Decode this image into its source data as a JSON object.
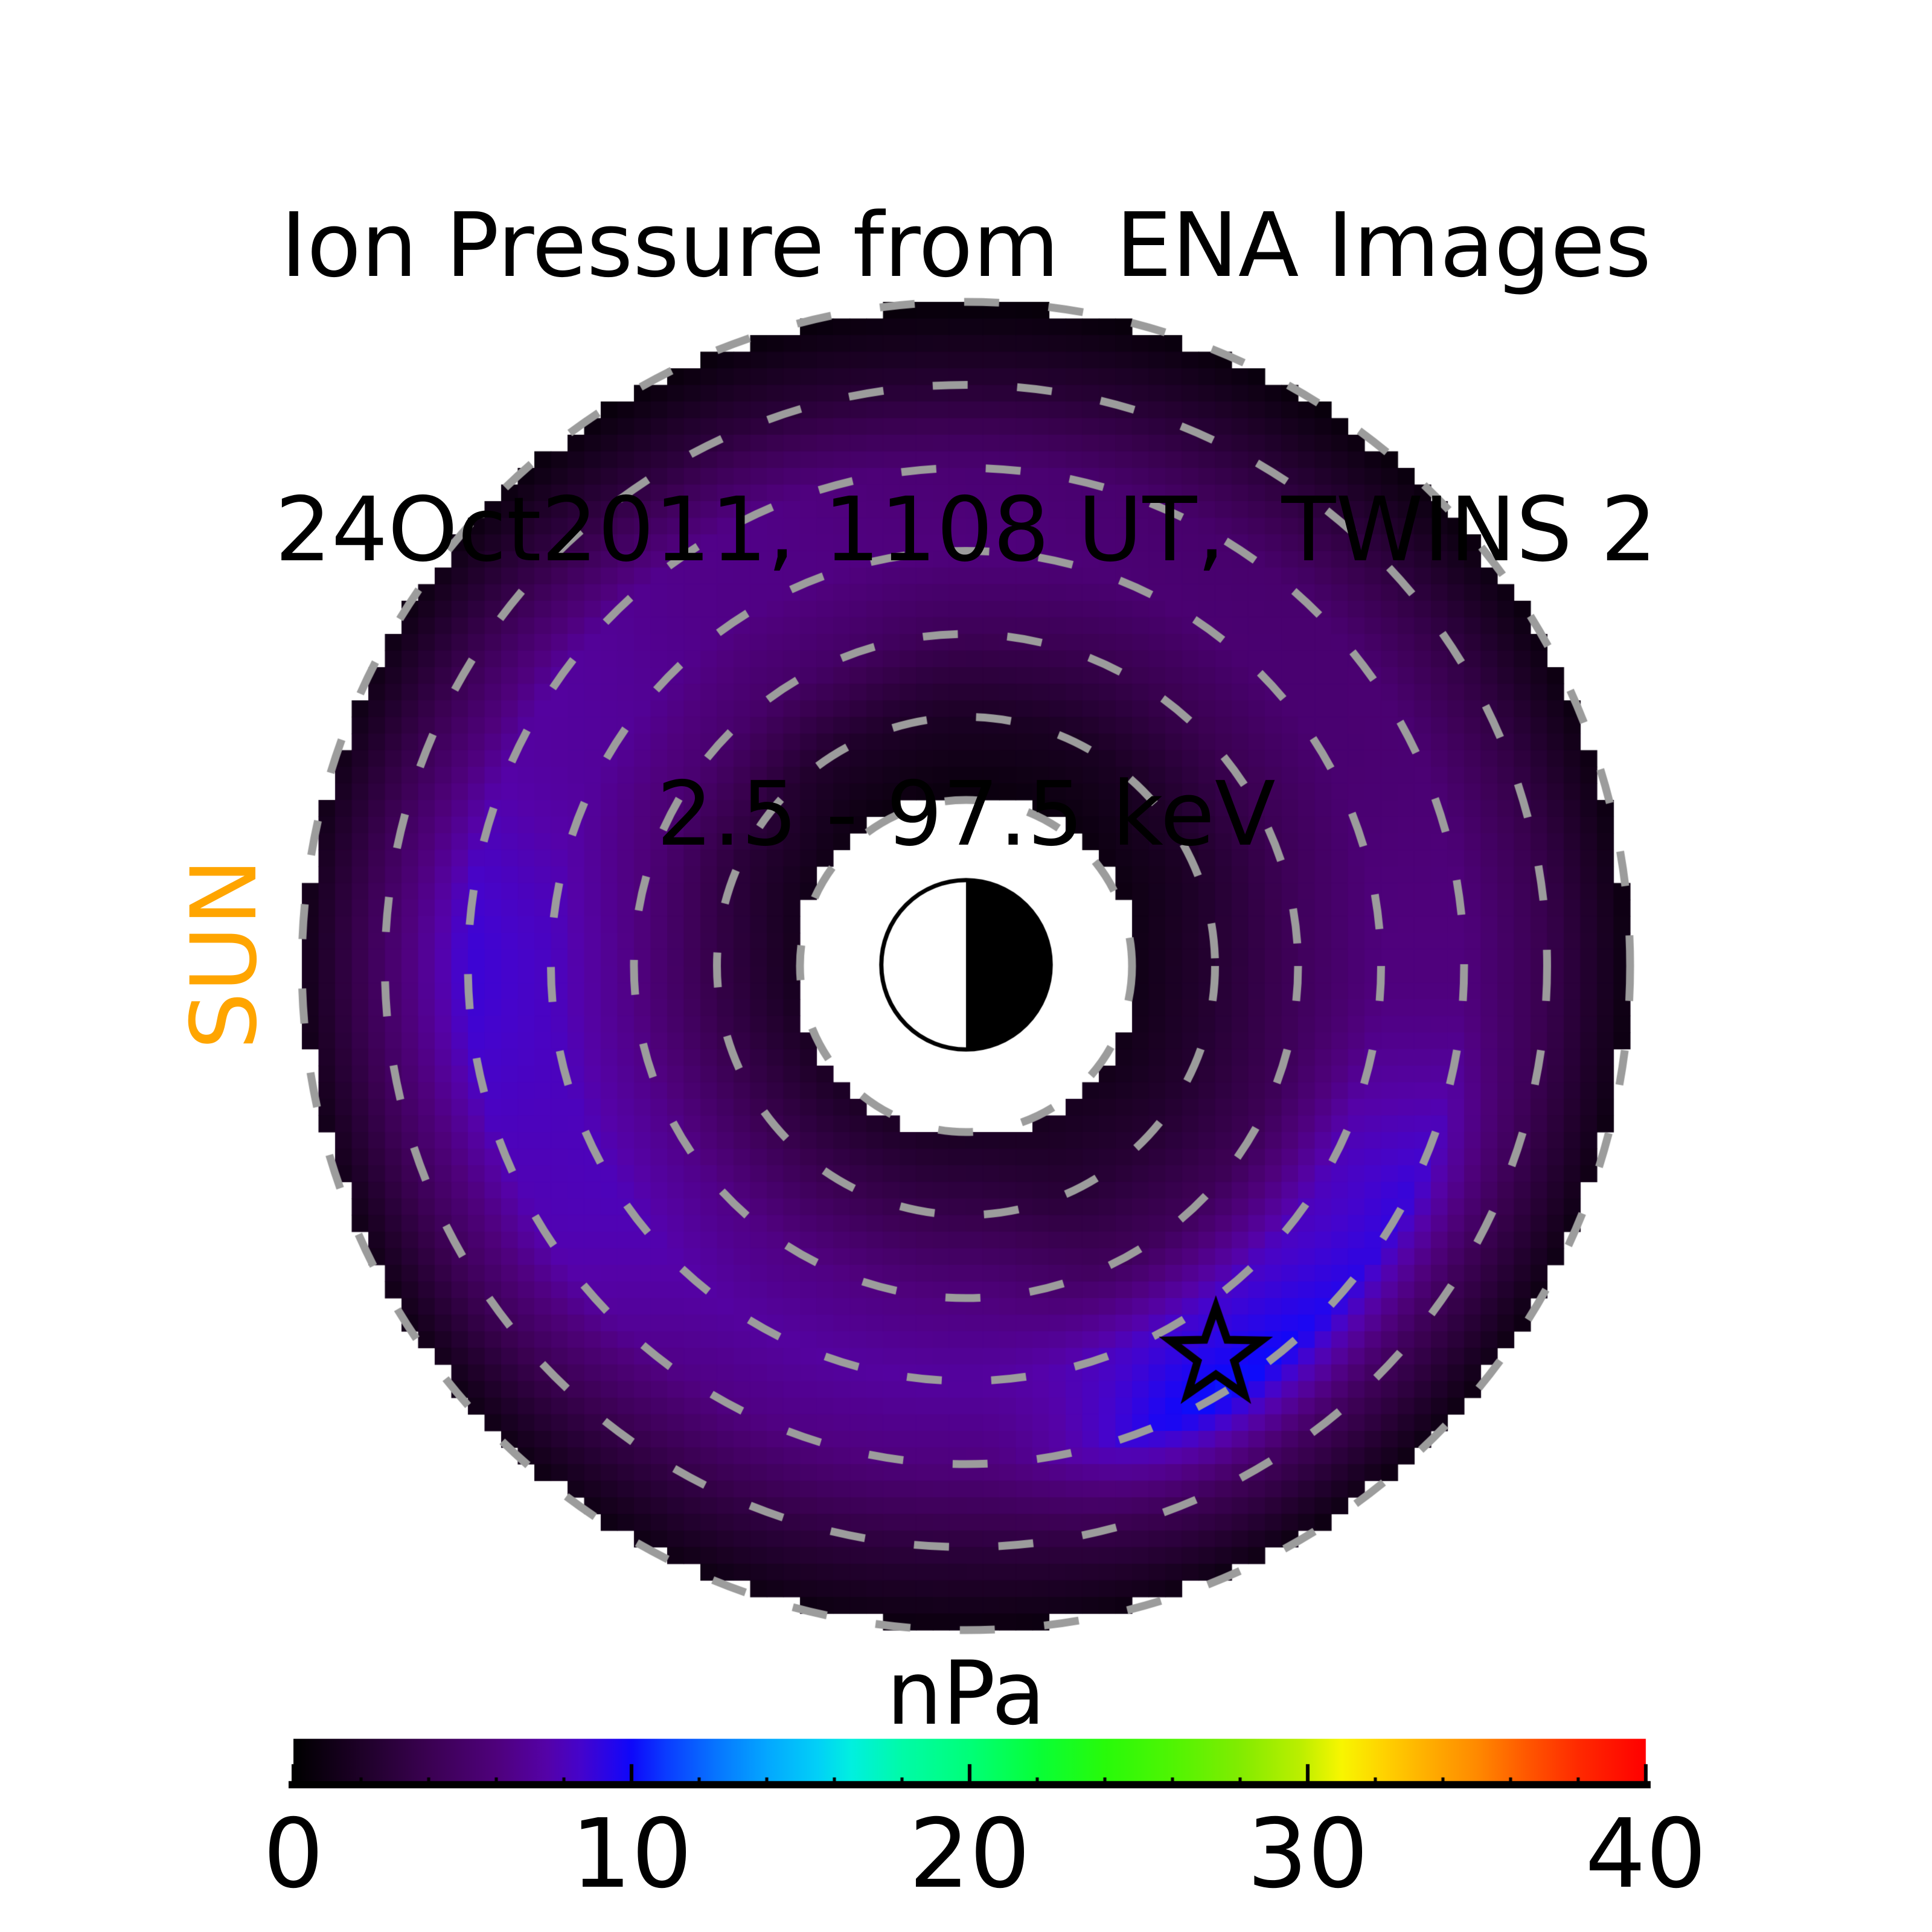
{
  "title": {
    "line1": "Ion Pressure from  ENA Images",
    "line2": "24Oct2011, 1108 UT,  TWINS 2",
    "line3": "2.5 - 97.5 keV"
  },
  "sun_label": "SUN",
  "colors": {
    "background": "#FFFFFF",
    "text": "#000000",
    "sun_label": "#FFA500",
    "dashed_rings": "#9C9C9C",
    "earth_outline": "#000000",
    "star_marker": "#000000"
  },
  "chart_data": {
    "type": "heatmap",
    "projection": "polar-equatorial-plane",
    "units": "nPa",
    "sun_direction": "left",
    "ring_radii_re": [
      2,
      3,
      4,
      5,
      6,
      7,
      8
    ],
    "earth": {
      "radius_re": 1,
      "dayside": "left-white",
      "nightside": "right-black"
    },
    "star_marker": {
      "x_re": 3.01,
      "y_re": -4.69,
      "outer_radius_re": 0.58,
      "inner_radius_ratio": 0.4
    },
    "field": {
      "comment_visible_structure": "ion pressure vs radius and azimuth; azimuth 0 = right(anti-sunward), counter-clockwise; bright blue crescent on duskside/left near r=5-6 Re and brightest arc in lower-right near star (~10 nPa)",
      "cell_size_re": 0.2,
      "inner_edge_re": 2.09,
      "outer_edge_re": 7.97,
      "radii_re": [
        2.1,
        3,
        4,
        5,
        6,
        7,
        8
      ],
      "azimuth_deg": [
        0,
        30,
        60,
        90,
        120,
        150,
        180,
        210,
        240,
        270,
        300,
        330
      ],
      "pressure_npa": [
        [
          1.2,
          2.5,
          4.4,
          6.0,
          6.0,
          3.8,
          0.8
        ],
        [
          0.9,
          2.0,
          4.0,
          5.4,
          5.5,
          3.3,
          0.7
        ],
        [
          0.7,
          1.7,
          3.8,
          5.5,
          5.2,
          2.8,
          0.5
        ],
        [
          0.7,
          1.8,
          4.2,
          6.0,
          5.5,
          2.5,
          0.4
        ],
        [
          0.8,
          2.1,
          5.0,
          6.3,
          6.4,
          3.0,
          0.5
        ],
        [
          1.2,
          2.8,
          5.5,
          7.0,
          7.2,
          4.0,
          0.9
        ],
        [
          1.6,
          3.5,
          6.2,
          8.2,
          8.8,
          5.0,
          1.2
        ],
        [
          1.8,
          3.8,
          6.4,
          8.0,
          7.8,
          4.5,
          1.0
        ],
        [
          1.9,
          3.8,
          6.2,
          7.2,
          6.2,
          3.5,
          0.9
        ],
        [
          1.9,
          3.6,
          6.0,
          7.2,
          6.0,
          3.0,
          0.7
        ],
        [
          1.6,
          2.6,
          4.4,
          8.5,
          10.3,
          4.5,
          0.8
        ],
        [
          1.2,
          2.4,
          4.2,
          8.0,
          9.0,
          4.2,
          0.8
        ]
      ]
    },
    "colorbar": {
      "label": "nPa",
      "min": 0,
      "max": 40,
      "tick_values": [
        0,
        10,
        20,
        30,
        40
      ],
      "tick_labels": [
        "0",
        "10",
        "20",
        "30",
        "40"
      ],
      "minor_tick_step": 2,
      "colormap_stops": [
        [
          0,
          "#000000"
        ],
        [
          2,
          "#1E0128"
        ],
        [
          4,
          "#3B0152"
        ],
        [
          6,
          "#4F017C"
        ],
        [
          7.5,
          "#5502A8"
        ],
        [
          8.5,
          "#4504CC"
        ],
        [
          9.5,
          "#2206EE"
        ],
        [
          10,
          "#0E08FA"
        ],
        [
          11,
          "#0B3BFF"
        ],
        [
          12.5,
          "#0775FF"
        ],
        [
          14,
          "#04A7FF"
        ],
        [
          15.5,
          "#02D0F8"
        ],
        [
          16.5,
          "#01F0E0"
        ],
        [
          18,
          "#00FBA8"
        ],
        [
          20,
          "#00FF78"
        ],
        [
          22,
          "#08FF38"
        ],
        [
          24,
          "#28FB0A"
        ],
        [
          26,
          "#50F503"
        ],
        [
          28,
          "#82EC01"
        ],
        [
          29.8,
          "#BCEF00"
        ],
        [
          31,
          "#F8F600"
        ],
        [
          32.2,
          "#FFD400"
        ],
        [
          33.5,
          "#FFB000"
        ],
        [
          35,
          "#FF8A00"
        ],
        [
          36.5,
          "#FF5700"
        ],
        [
          38,
          "#FF2A00"
        ],
        [
          40,
          "#FF0000"
        ]
      ]
    }
  }
}
